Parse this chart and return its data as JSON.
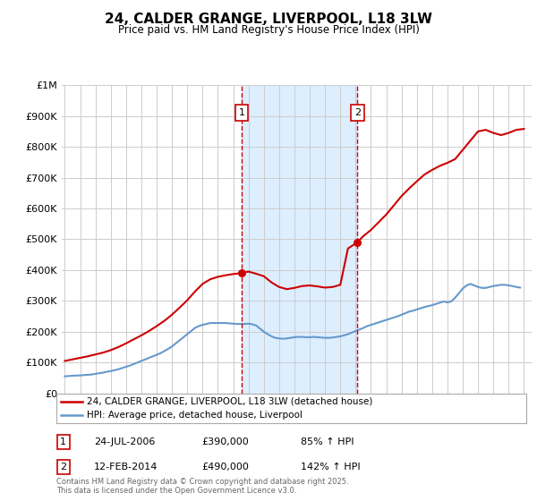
{
  "title": "24, CALDER GRANGE, LIVERPOOL, L18 3LW",
  "subtitle": "Price paid vs. HM Land Registry's House Price Index (HPI)",
  "ylim": [
    0,
    1000000
  ],
  "yticks": [
    0,
    100000,
    200000,
    300000,
    400000,
    500000,
    600000,
    700000,
    800000,
    900000,
    1000000
  ],
  "ytick_labels": [
    "£0",
    "£100K",
    "£200K",
    "£300K",
    "£400K",
    "£500K",
    "£600K",
    "£700K",
    "£800K",
    "£900K",
    "£1M"
  ],
  "xlim_start": 1994.8,
  "xlim_end": 2025.5,
  "xticks": [
    1995,
    1996,
    1997,
    1998,
    1999,
    2000,
    2001,
    2002,
    2003,
    2004,
    2005,
    2006,
    2007,
    2008,
    2009,
    2010,
    2011,
    2012,
    2013,
    2014,
    2015,
    2016,
    2017,
    2018,
    2019,
    2020,
    2021,
    2022,
    2023,
    2024,
    2025
  ],
  "sale1_date_x": 2006.56,
  "sale1_price": 390000,
  "sale1_label": "1",
  "sale1_date_str": "24-JUL-2006",
  "sale1_price_str": "£390,000",
  "sale1_hpi_str": "85% ↑ HPI",
  "sale2_date_x": 2014.12,
  "sale2_price": 490000,
  "sale2_label": "2",
  "sale2_date_str": "12-FEB-2014",
  "sale2_price_str": "£490,000",
  "sale2_hpi_str": "142% ↑ HPI",
  "hpi_line_color": "#6699cc",
  "property_line_color": "#cc0000",
  "shade_color": "#ddeeff",
  "vline_color": "#cc0000",
  "background_color": "#ffffff",
  "grid_color": "#cccccc",
  "legend_label_property": "24, CALDER GRANGE, LIVERPOOL, L18 3LW (detached house)",
  "legend_label_hpi": "HPI: Average price, detached house, Liverpool",
  "footer_text": "Contains HM Land Registry data © Crown copyright and database right 2025.\nThis data is licensed under the Open Government Licence v3.0.",
  "hpi_x": [
    1995.0,
    1995.25,
    1995.5,
    1995.75,
    1996.0,
    1996.25,
    1996.5,
    1996.75,
    1997.0,
    1997.25,
    1997.5,
    1997.75,
    1998.0,
    1998.25,
    1998.5,
    1998.75,
    1999.0,
    1999.25,
    1999.5,
    1999.75,
    2000.0,
    2000.25,
    2000.5,
    2000.75,
    2001.0,
    2001.25,
    2001.5,
    2001.75,
    2002.0,
    2002.25,
    2002.5,
    2002.75,
    2003.0,
    2003.25,
    2003.5,
    2003.75,
    2004.0,
    2004.25,
    2004.5,
    2004.75,
    2005.0,
    2005.25,
    2005.5,
    2005.75,
    2006.0,
    2006.25,
    2006.5,
    2006.75,
    2007.0,
    2007.25,
    2007.5,
    2007.75,
    2008.0,
    2008.25,
    2008.5,
    2008.75,
    2009.0,
    2009.25,
    2009.5,
    2009.75,
    2010.0,
    2010.25,
    2010.5,
    2010.75,
    2011.0,
    2011.25,
    2011.5,
    2011.75,
    2012.0,
    2012.25,
    2012.5,
    2012.75,
    2013.0,
    2013.25,
    2013.5,
    2013.75,
    2014.0,
    2014.25,
    2014.5,
    2014.75,
    2015.0,
    2015.25,
    2015.5,
    2015.75,
    2016.0,
    2016.25,
    2016.5,
    2016.75,
    2017.0,
    2017.25,
    2017.5,
    2017.75,
    2018.0,
    2018.25,
    2018.5,
    2018.75,
    2019.0,
    2019.25,
    2019.5,
    2019.75,
    2020.0,
    2020.25,
    2020.5,
    2020.75,
    2021.0,
    2021.25,
    2021.5,
    2021.75,
    2022.0,
    2022.25,
    2022.5,
    2022.75,
    2023.0,
    2023.25,
    2023.5,
    2023.75,
    2024.0,
    2024.25,
    2024.5,
    2024.75
  ],
  "hpi_y": [
    55000,
    56000,
    57000,
    57500,
    58000,
    59000,
    60000,
    61000,
    63000,
    65000,
    67000,
    70000,
    72000,
    75000,
    78000,
    82000,
    86000,
    90000,
    95000,
    100000,
    105000,
    110000,
    115000,
    120000,
    125000,
    130000,
    137000,
    144000,
    152000,
    162000,
    172000,
    182000,
    192000,
    202000,
    212000,
    218000,
    222000,
    225000,
    228000,
    228000,
    228000,
    228000,
    228000,
    227000,
    226000,
    225000,
    225000,
    225000,
    226000,
    224000,
    220000,
    210000,
    200000,
    192000,
    185000,
    180000,
    178000,
    177000,
    178000,
    180000,
    182000,
    183000,
    183000,
    182000,
    182000,
    183000,
    182000,
    181000,
    180000,
    180000,
    181000,
    183000,
    185000,
    188000,
    192000,
    197000,
    202000,
    207000,
    212000,
    218000,
    222000,
    226000,
    230000,
    234000,
    238000,
    242000,
    246000,
    250000,
    255000,
    260000,
    265000,
    268000,
    272000,
    276000,
    280000,
    283000,
    286000,
    290000,
    294000,
    298000,
    295000,
    298000,
    310000,
    325000,
    340000,
    350000,
    355000,
    350000,
    345000,
    342000,
    342000,
    345000,
    348000,
    350000,
    352000,
    352000,
    350000,
    348000,
    345000,
    343000
  ],
  "property_x": [
    1995.0,
    1995.5,
    1996.0,
    1996.5,
    1997.0,
    1997.5,
    1998.0,
    1998.5,
    1999.0,
    1999.5,
    2000.0,
    2000.5,
    2001.0,
    2001.5,
    2002.0,
    2002.5,
    2003.0,
    2003.5,
    2004.0,
    2004.5,
    2005.0,
    2005.5,
    2006.0,
    2006.56,
    2007.0,
    2007.5,
    2008.0,
    2008.5,
    2009.0,
    2009.5,
    2010.0,
    2010.5,
    2011.0,
    2011.5,
    2012.0,
    2012.5,
    2013.0,
    2013.5,
    2014.12,
    2014.5,
    2015.0,
    2015.5,
    2016.0,
    2016.5,
    2017.0,
    2017.5,
    2018.0,
    2018.5,
    2019.0,
    2019.5,
    2020.0,
    2020.5,
    2021.0,
    2021.5,
    2022.0,
    2022.5,
    2023.0,
    2023.5,
    2024.0,
    2024.5,
    2025.0
  ],
  "property_y": [
    105000,
    110000,
    115000,
    120000,
    126000,
    132000,
    140000,
    150000,
    162000,
    175000,
    188000,
    202000,
    218000,
    235000,
    255000,
    278000,
    302000,
    330000,
    355000,
    370000,
    378000,
    383000,
    387000,
    390000,
    395000,
    388000,
    380000,
    360000,
    345000,
    338000,
    342000,
    348000,
    350000,
    347000,
    343000,
    345000,
    352000,
    470000,
    490000,
    510000,
    530000,
    555000,
    580000,
    610000,
    640000,
    665000,
    688000,
    710000,
    725000,
    738000,
    748000,
    760000,
    790000,
    820000,
    850000,
    855000,
    845000,
    838000,
    845000,
    855000,
    858000
  ]
}
